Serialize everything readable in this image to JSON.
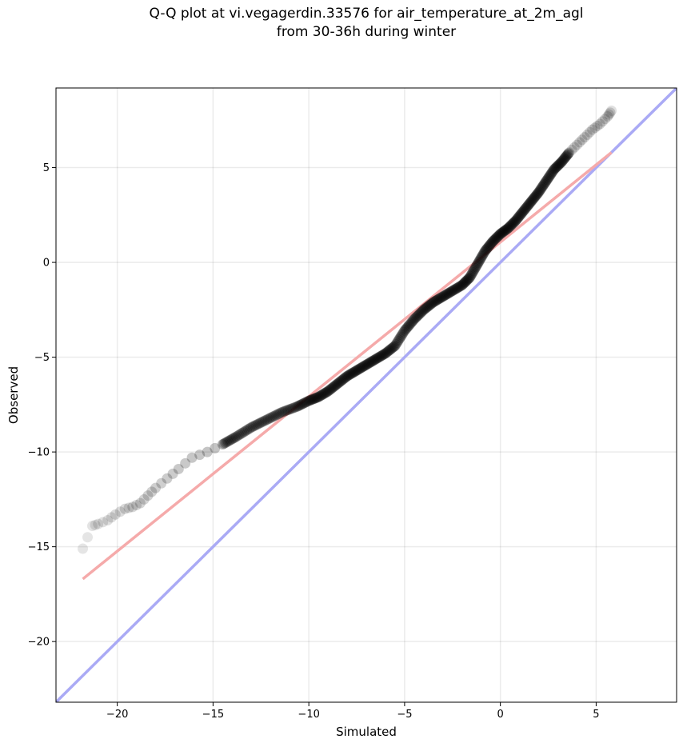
{
  "chart_data": {
    "type": "scatter",
    "title_line1": "Q-Q plot at vi.vegagerdin.33576 for air_temperature_at_2m_agl",
    "title_line2": "from 30-36h during winter",
    "xlabel": "Simulated",
    "ylabel": "Observed",
    "xlim": [
      -23.2,
      9.2
    ],
    "ylim": [
      -23.2,
      9.2
    ],
    "xticks": [
      -20,
      -15,
      -10,
      -5,
      0,
      5
    ],
    "yticks": [
      -20,
      -15,
      -10,
      -5,
      0,
      5
    ],
    "tick_labels_x": [
      "−20",
      "−15",
      "−10",
      "−5",
      "0",
      "5"
    ],
    "tick_labels_y": [
      "−20",
      "−15",
      "−10",
      "−5",
      "0",
      "5"
    ],
    "grid": true,
    "colors": {
      "points": "#000000",
      "identity_line": "#aaaaf5",
      "fit_line": "#f5aaaa"
    },
    "identity_line": {
      "x": [
        -23.2,
        9.2
      ],
      "y": [
        -23.2,
        9.2
      ]
    },
    "fit_line": {
      "x": [
        -21.8,
        5.8
      ],
      "y": [
        -16.7,
        5.8
      ]
    },
    "quantiles": {
      "x": [
        -21.8,
        -21.3,
        -21.0,
        -20.5,
        -20.1,
        -19.6,
        -19.2,
        -18.8,
        -18.4,
        -18.0,
        -17.4,
        -16.8,
        -16.1,
        -15.3,
        -14.5,
        -13.8,
        -13.0,
        -12.2,
        -11.4,
        -10.6,
        -10.0,
        -9.5,
        -9.0,
        -8.5,
        -8.0,
        -7.5,
        -7.0,
        -6.5,
        -6.0,
        -5.5,
        -5.0,
        -4.5,
        -4.0,
        -3.5,
        -3.0,
        -2.5,
        -2.0,
        -1.6,
        -1.2,
        -0.8,
        -0.4,
        0.0,
        0.4,
        0.8,
        1.2,
        1.6,
        2.0,
        2.4,
        2.8,
        3.2,
        3.6,
        4.0,
        4.4,
        4.8,
        5.2,
        5.6,
        5.8
      ],
      "y": [
        -15.1,
        -13.9,
        -13.8,
        -13.6,
        -13.3,
        -13.0,
        -12.9,
        -12.7,
        -12.3,
        -11.9,
        -11.4,
        -10.9,
        -10.3,
        -10.0,
        -9.6,
        -9.2,
        -8.7,
        -8.3,
        -7.9,
        -7.6,
        -7.3,
        -7.1,
        -6.8,
        -6.4,
        -6.0,
        -5.7,
        -5.4,
        -5.1,
        -4.8,
        -4.4,
        -3.6,
        -3.0,
        -2.5,
        -2.1,
        -1.8,
        -1.5,
        -1.2,
        -0.8,
        -0.1,
        0.6,
        1.1,
        1.5,
        1.8,
        2.2,
        2.7,
        3.2,
        3.7,
        4.3,
        4.9,
        5.3,
        5.8,
        6.2,
        6.6,
        7.0,
        7.3,
        7.7,
        8.0
      ]
    }
  }
}
